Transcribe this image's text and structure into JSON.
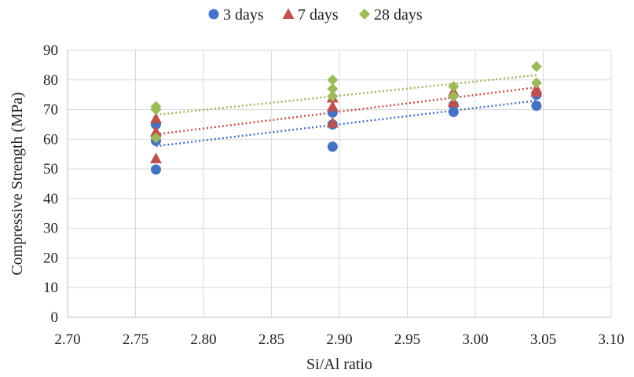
{
  "chart_data": {
    "type": "scatter",
    "title": "",
    "xlabel": "Si/Al ratio",
    "ylabel": "Compressive Strength (MPa)",
    "xlim": [
      2.7,
      3.1
    ],
    "ylim": [
      0,
      90
    ],
    "x_ticks": [
      "2.70",
      "2.75",
      "2.80",
      "2.85",
      "2.90",
      "2.95",
      "3.00",
      "3.05",
      "3.10"
    ],
    "y_ticks": [
      "0",
      "10",
      "20",
      "30",
      "40",
      "50",
      "60",
      "70",
      "80",
      "90"
    ],
    "grid": true,
    "legend_position": "top-center",
    "series": [
      {
        "name": "3 days",
        "marker": "circle",
        "color": "#4472C4",
        "trendline": "linear",
        "points": [
          {
            "x": 2.765,
            "y": 49.8
          },
          {
            "x": 2.765,
            "y": 59.5
          },
          {
            "x": 2.765,
            "y": 65.0
          },
          {
            "x": 2.895,
            "y": 57.5
          },
          {
            "x": 2.895,
            "y": 65.0
          },
          {
            "x": 2.895,
            "y": 69.0
          },
          {
            "x": 2.984,
            "y": 69.2
          },
          {
            "x": 2.984,
            "y": 71.5
          },
          {
            "x": 3.045,
            "y": 71.3
          },
          {
            "x": 3.045,
            "y": 75.0
          }
        ]
      },
      {
        "name": "7 days",
        "marker": "triangle",
        "color": "#C0504D",
        "trendline": "linear",
        "points": [
          {
            "x": 2.765,
            "y": 53.5
          },
          {
            "x": 2.765,
            "y": 62.5
          },
          {
            "x": 2.765,
            "y": 67.0
          },
          {
            "x": 2.895,
            "y": 65.5
          },
          {
            "x": 2.895,
            "y": 71.0
          },
          {
            "x": 2.895,
            "y": 74.0
          },
          {
            "x": 2.984,
            "y": 72.5
          },
          {
            "x": 2.984,
            "y": 76.0
          },
          {
            "x": 3.045,
            "y": 76.0
          },
          {
            "x": 3.045,
            "y": 77.0
          }
        ]
      },
      {
        "name": "28 days",
        "marker": "diamond",
        "color": "#9BBB59",
        "trendline": "linear",
        "points": [
          {
            "x": 2.765,
            "y": 60.5
          },
          {
            "x": 2.765,
            "y": 70.0
          },
          {
            "x": 2.765,
            "y": 71.0
          },
          {
            "x": 2.895,
            "y": 74.5
          },
          {
            "x": 2.895,
            "y": 77.0
          },
          {
            "x": 2.895,
            "y": 80.0
          },
          {
            "x": 2.984,
            "y": 74.5
          },
          {
            "x": 2.984,
            "y": 77.8
          },
          {
            "x": 3.045,
            "y": 79.0
          },
          {
            "x": 3.045,
            "y": 84.5
          }
        ]
      }
    ]
  }
}
